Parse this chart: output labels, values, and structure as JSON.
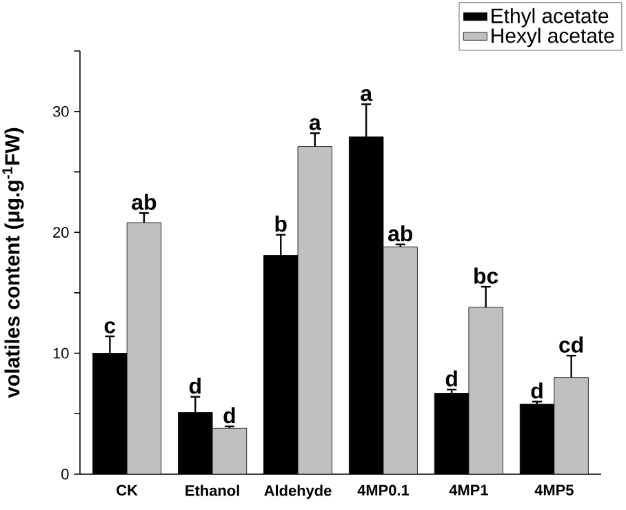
{
  "chart_data": {
    "type": "bar",
    "ylabel": "volatiles content (μg.g$^{-1}$FW)",
    "categories": [
      "CK",
      "Ethanol",
      "Aldehyde",
      "4MP0.1",
      "4MP1",
      "4MP5"
    ],
    "series": [
      {
        "name": "Ethyl acetate",
        "color": "#000000",
        "values": [
          10.0,
          5.1,
          18.1,
          27.9,
          6.7,
          5.8
        ],
        "errors": [
          1.4,
          1.3,
          1.7,
          2.7,
          0.3,
          0.2
        ]
      },
      {
        "name": "Hexyl acetate",
        "color": "#c0c0c0",
        "values": [
          20.8,
          3.8,
          27.1,
          18.8,
          13.8,
          8.0
        ],
        "errors": [
          0.8,
          0.15,
          1.1,
          0.2,
          1.7,
          1.8
        ]
      }
    ],
    "ylim": [
      0,
      35
    ],
    "yticks": [
      0,
      {
        "value": 5,
        "label": null
      },
      10,
      {
        "value": 15,
        "label": null
      },
      20,
      {
        "value": 25,
        "label": null
      },
      30,
      {
        "value": 35,
        "label": null
      }
    ],
    "legend": "top right",
    "grid": false,
    "annotations": [
      "c",
      "ab",
      "d",
      "d",
      "b",
      "a",
      "a",
      "ab",
      "d",
      "bc",
      "d",
      "cd"
    ]
  }
}
